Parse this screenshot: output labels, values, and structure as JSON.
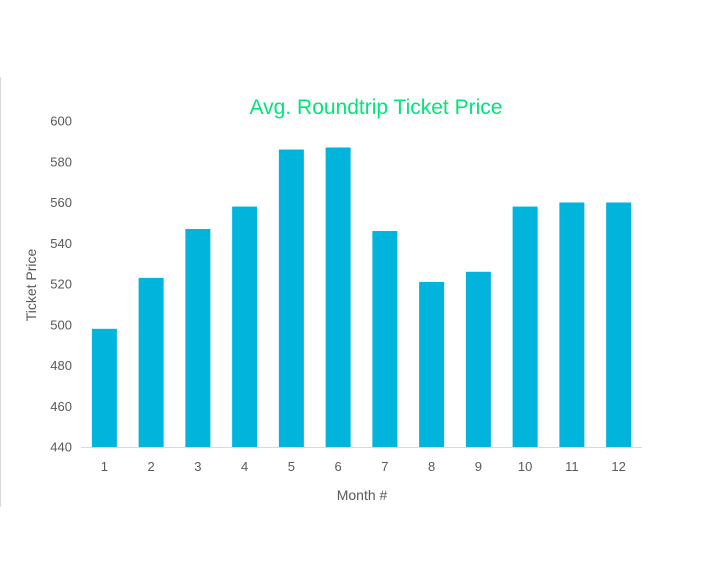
{
  "colors": {
    "bar": "#00b4dc",
    "title": "#00e676",
    "axis_text": "#595959",
    "axis_line": "#d9d9d9"
  },
  "chart_data": {
    "type": "bar",
    "title": "Avg. Roundtrip Ticket Price",
    "xlabel": "Month #",
    "ylabel": "Ticket Price",
    "categories": [
      "1",
      "2",
      "3",
      "4",
      "5",
      "6",
      "7",
      "8",
      "9",
      "10",
      "11",
      "12"
    ],
    "values": [
      498,
      523,
      547,
      558,
      586,
      587,
      546,
      521,
      526,
      558,
      560,
      560
    ],
    "ylim": [
      440,
      600
    ],
    "yticks": [
      440,
      460,
      480,
      500,
      520,
      540,
      560,
      580,
      600
    ],
    "grid": false,
    "legend": "none"
  }
}
